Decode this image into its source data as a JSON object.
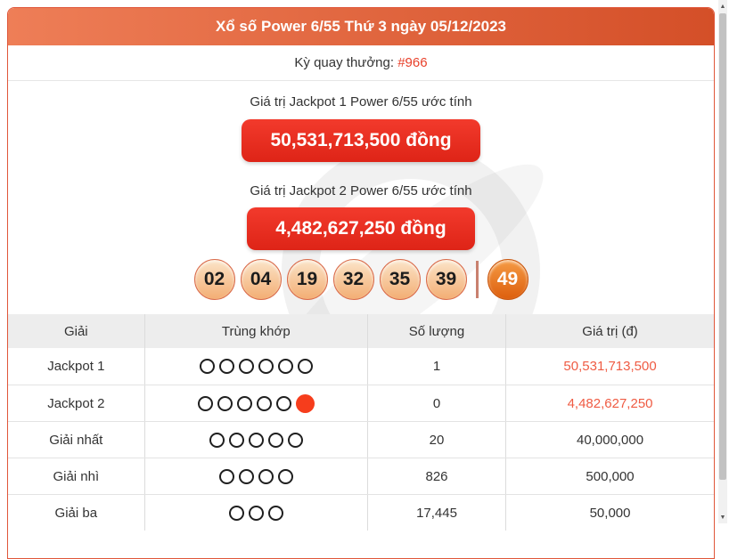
{
  "header": {
    "title": "Xổ số Power 6/55 Thứ 3 ngày 05/12/2023"
  },
  "draw": {
    "label": "Kỳ quay thưởng: ",
    "number": "#966"
  },
  "jackpot1": {
    "label": "Giá trị Jackpot 1 Power 6/55 ước tính",
    "value": "50,531,713,500 đồng"
  },
  "jackpot2": {
    "label": "Giá trị Jackpot 2 Power 6/55 ước tính",
    "value": "4,482,627,250 đồng"
  },
  "balls": {
    "main": [
      "02",
      "04",
      "19",
      "32",
      "35",
      "39"
    ],
    "power": "49"
  },
  "table": {
    "headers": [
      "Giải",
      "Trùng khớp",
      "Số lượng",
      "Giá trị (đ)"
    ],
    "rows": [
      {
        "prize": "Jackpot 1",
        "match_open": 6,
        "match_filled": 0,
        "quantity": "1",
        "value": "50,531,713,500",
        "value_red": true
      },
      {
        "prize": "Jackpot 2",
        "match_open": 5,
        "match_filled": 1,
        "quantity": "0",
        "value": "4,482,627,250",
        "value_red": true
      },
      {
        "prize": "Giải nhất",
        "match_open": 5,
        "match_filled": 0,
        "quantity": "20",
        "value": "40,000,000",
        "value_red": false
      },
      {
        "prize": "Giải nhì",
        "match_open": 4,
        "match_filled": 0,
        "quantity": "826",
        "value": "500,000",
        "value_red": false
      },
      {
        "prize": "Giải ba",
        "match_open": 3,
        "match_filled": 0,
        "quantity": "17,445",
        "value": "50,000",
        "value_red": false
      }
    ]
  },
  "icons": {
    "scroll_up": "▲",
    "scroll_down": "▼"
  },
  "colors": {
    "header_grad_left": "#ee7e57",
    "header_grad_right": "#d44f28",
    "page_border": "#e0563a",
    "btn_red_top": "#f23a2c",
    "btn_red_bottom": "#de2417",
    "red_text": "#e8402a",
    "value_red": "#ef5b43",
    "ball_border": "#d96a4a",
    "ball_top": "#fbe4c8",
    "ball_bottom": "#f3ae74",
    "power_top": "#f59b44",
    "power_bottom": "#dd5f0e",
    "divider_rose": "#c9816f",
    "table_header_bg": "#ededed",
    "filled_circle": "#f63d1c"
  }
}
